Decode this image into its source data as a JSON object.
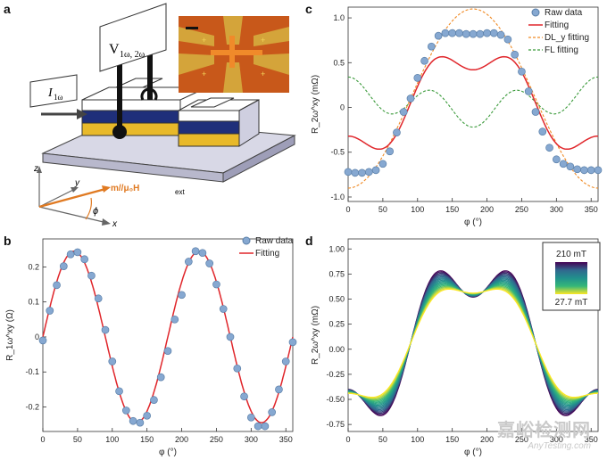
{
  "panel_letters": [
    "a",
    "b",
    "c",
    "d"
  ],
  "schematic": {
    "voltage_label": "V",
    "voltage_sub": "1ω, 2ω",
    "current_label": "I",
    "current_sub": "1ω",
    "axis_z": "z",
    "axis_y": "y",
    "axis_x": "x",
    "field_label": "m//μ₀H",
    "field_sub": "ext",
    "phi_label": "ϕ"
  },
  "chart_data": [
    {
      "id": "b",
      "type": "scatter",
      "xlabel": "φ (°)",
      "ylabel": "R_1ω^xy (Ω)",
      "xlim": [
        0,
        360
      ],
      "ylim": [
        -0.27,
        0.28
      ],
      "xticks": [
        0,
        50,
        100,
        150,
        200,
        250,
        300,
        350
      ],
      "yticks": [
        -0.2,
        -0.1,
        0,
        0.1,
        0.2
      ],
      "ytick_labels": [
        "-0.2",
        "-0.1",
        "0",
        "0.1",
        "0.2"
      ],
      "legend": [
        "Raw data",
        "Fitting"
      ],
      "legend_position": "top-right",
      "series": [
        {
          "name": "Raw data",
          "kind": "points",
          "x": [
            0,
            10,
            20,
            30,
            40,
            50,
            60,
            70,
            80,
            90,
            100,
            110,
            120,
            130,
            140,
            150,
            160,
            170,
            180,
            190,
            200,
            210,
            220,
            230,
            240,
            250,
            260,
            270,
            280,
            290,
            300,
            310,
            320,
            330,
            340,
            350,
            360
          ],
          "y": [
            -0.01,
            0.075,
            0.148,
            0.202,
            0.236,
            0.242,
            0.222,
            0.175,
            0.11,
            0.02,
            -0.07,
            -0.155,
            -0.21,
            -0.24,
            -0.245,
            -0.225,
            -0.18,
            -0.115,
            -0.04,
            0.05,
            0.12,
            0.215,
            0.245,
            0.24,
            0.21,
            0.15,
            0.08,
            0.0,
            -0.09,
            -0.17,
            -0.23,
            -0.255,
            -0.255,
            -0.215,
            -0.15,
            -0.07,
            -0.015
          ]
        },
        {
          "name": "Fitting",
          "kind": "line",
          "model": "0.245*sin(2φ)"
        }
      ],
      "colors": {
        "points": "#86a8d1",
        "points_edge": "#5a7fa8",
        "fit": "#e0262b"
      }
    },
    {
      "id": "c",
      "type": "scatter",
      "xlabel": "φ (°)",
      "ylabel": "R_2ω^xy (mΩ)",
      "xlim": [
        0,
        360
      ],
      "ylim": [
        -1.05,
        1.12
      ],
      "xticks": [
        0,
        50,
        100,
        150,
        200,
        250,
        300,
        350
      ],
      "yticks": [
        -1.0,
        -0.5,
        0,
        0.5,
        1.0
      ],
      "ytick_labels": [
        "-1.0",
        "-0.5",
        "0",
        "0.5",
        "1.0"
      ],
      "legend": [
        "Raw data",
        "Fitting",
        "DL_y fitting",
        "FL fitting"
      ],
      "legend_position": "top-right",
      "series": [
        {
          "name": "Raw data",
          "kind": "points",
          "x": [
            0,
            10,
            20,
            30,
            40,
            50,
            60,
            70,
            80,
            90,
            100,
            110,
            120,
            130,
            140,
            150,
            160,
            170,
            180,
            190,
            200,
            210,
            220,
            230,
            240,
            250,
            260,
            270,
            280,
            290,
            300,
            310,
            320,
            330,
            340,
            350,
            360
          ],
          "y": [
            -0.72,
            -0.73,
            -0.73,
            -0.72,
            -0.7,
            -0.63,
            -0.49,
            -0.28,
            -0.05,
            0.1,
            0.33,
            0.52,
            0.68,
            0.8,
            0.83,
            0.83,
            0.83,
            0.82,
            0.82,
            0.82,
            0.83,
            0.83,
            0.81,
            0.76,
            0.59,
            0.4,
            0.18,
            -0.05,
            -0.27,
            -0.45,
            -0.58,
            -0.63,
            -0.66,
            -0.69,
            -0.7,
            -0.7,
            -0.7
          ]
        },
        {
          "name": "Fitting",
          "kind": "line",
          "model": "0.55*(-cos φ) + 0.18*cos 3φ",
          "style": "solid"
        },
        {
          "name": "DL_y fitting",
          "kind": "line",
          "model": "-1.0*cos φ + 0.1",
          "style": "dashed"
        },
        {
          "name": "FL fitting",
          "kind": "line",
          "model": "0.06 + 0.18*cos 3φ + 0.1*cos φ",
          "style": "dashed"
        }
      ],
      "colors": {
        "points": "#86a8d1",
        "points_edge": "#5a7fa8",
        "fit": "#e0262b",
        "dly": "#f08a24",
        "fl": "#3a9a3a"
      }
    },
    {
      "id": "d",
      "type": "line",
      "xlabel": "φ (°)",
      "ylabel": "R_2ω^xy (mΩ)",
      "xlim": [
        0,
        360
      ],
      "ylim": [
        -0.82,
        1.1
      ],
      "xticks": [
        0,
        50,
        100,
        150,
        200,
        250,
        300,
        350
      ],
      "yticks": [
        -0.75,
        -0.5,
        -0.25,
        0,
        0.25,
        0.5,
        0.75,
        1.0
      ],
      "ytick_labels": [
        "-0.75",
        "-0.50",
        "-0.25",
        "0.00",
        "0.25",
        "0.50",
        "0.75",
        "1.00"
      ],
      "colorbar": {
        "top_label": "210 mT",
        "bottom_label": "27.7 mT",
        "colors": [
          "#440154",
          "#31688e",
          "#21908d",
          "#35b779",
          "#fde725"
        ]
      },
      "series_count": 18
    }
  ],
  "watermark": {
    "line1": "嘉峪检测网",
    "line2": "AnyTesting.com"
  }
}
